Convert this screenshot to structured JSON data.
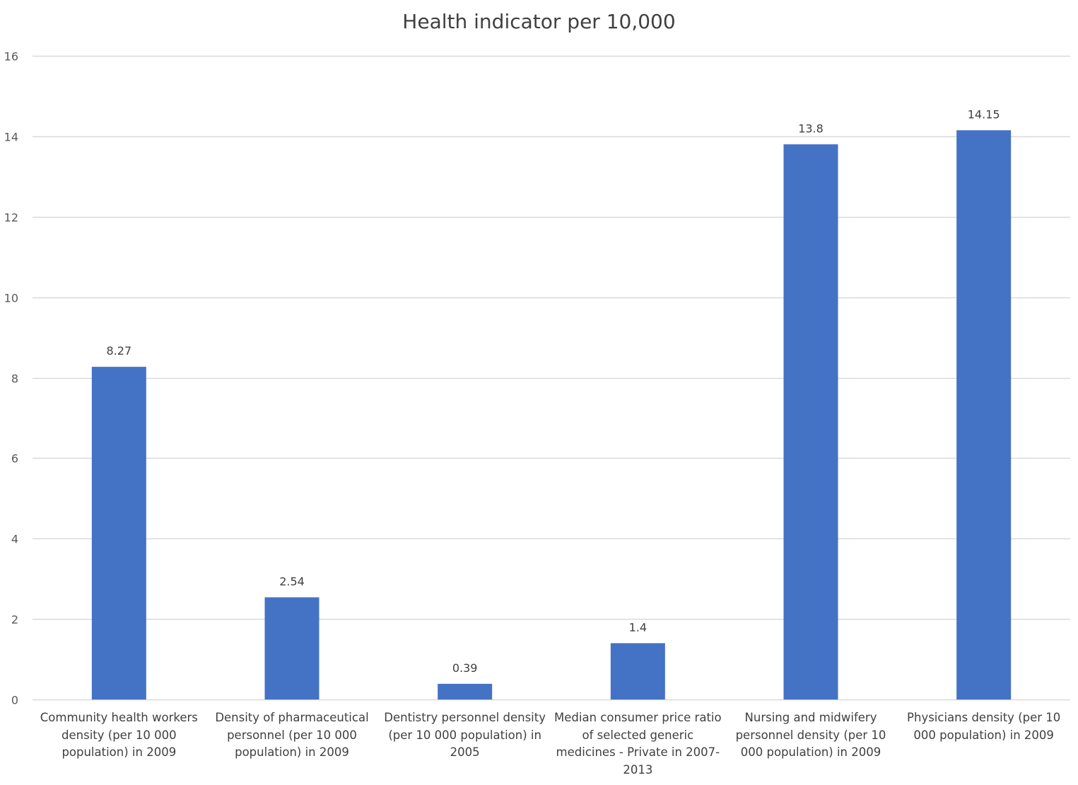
{
  "chart_data": {
    "type": "bar",
    "title": "Health indicator per 10,000",
    "xlabel": "",
    "ylabel": "",
    "ylim": [
      0,
      16
    ],
    "yticks": [
      0,
      2,
      4,
      6,
      8,
      10,
      12,
      14,
      16
    ],
    "grid": true,
    "legend": "none",
    "bar_color": "#4472C4",
    "categories": [
      "Community health workers density (per 10 000 population) in 2009",
      "Density of pharmaceutical personnel (per 10 000 population) in 2009",
      "Dentistry personnel density (per 10 000 population) in 2005",
      "Median consumer price ratio of selected generic medicines - Private in 2007-2013",
      "Nursing and midwifery personnel density (per 10 000 population) in 2009",
      "Physicians density (per 10 000 population) in 2009"
    ],
    "values": [
      8.27,
      2.54,
      0.39,
      1.4,
      13.8,
      14.15
    ],
    "data_labels": [
      "8.27",
      "2.54",
      "0.39",
      "1.4",
      "13.8",
      "14.15"
    ]
  }
}
